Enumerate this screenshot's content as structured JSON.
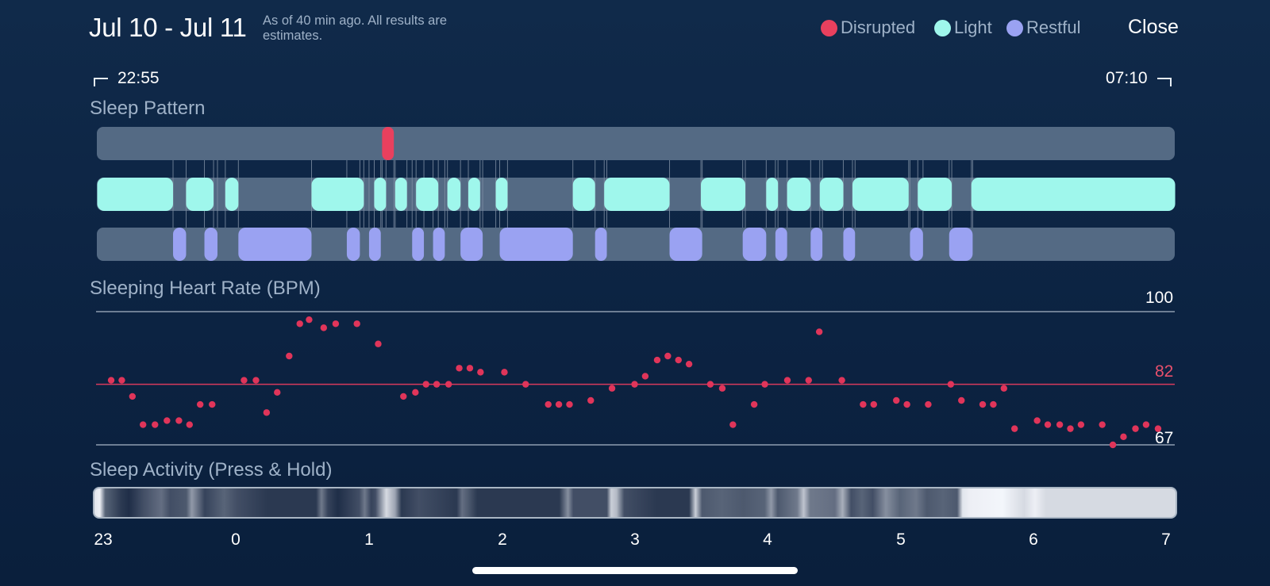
{
  "header": {
    "date_range": "Jul 10 - Jul 11",
    "note": "As of 40 min ago. All results are estimates.",
    "close_label": "Close"
  },
  "legend": [
    {
      "label": "Disrupted",
      "color": "#e8405e"
    },
    {
      "label": "Light",
      "color": "#9ff7ec"
    },
    {
      "label": "Restful",
      "color": "#9aa2f2"
    }
  ],
  "times": {
    "start": "22:55",
    "end": "07:10"
  },
  "sleep_pattern": {
    "title": "Sleep Pattern",
    "track_color": "#546a84",
    "start_hour": 22.9167,
    "end_hour": 31.1667,
    "rows": {
      "disrupted": [
        [
          1.1,
          1.19
        ]
      ],
      "light": [
        [
          22.92,
          23.5
        ],
        [
          23.6,
          23.81
        ],
        [
          23.9,
          24.0
        ],
        [
          24.56,
          24.96
        ],
        [
          25.04,
          25.13
        ],
        [
          25.2,
          25.29
        ],
        [
          25.36,
          25.53
        ],
        [
          25.6,
          25.7
        ],
        [
          25.76,
          25.85
        ],
        [
          25.97,
          26.06
        ],
        [
          26.56,
          26.73
        ],
        [
          26.8,
          27.3
        ],
        [
          27.54,
          27.88
        ],
        [
          28.04,
          28.13
        ],
        [
          28.2,
          28.38
        ],
        [
          28.45,
          28.63
        ],
        [
          28.7,
          29.13
        ],
        [
          29.2,
          29.46
        ],
        [
          29.61,
          31.17
        ]
      ],
      "restful": [
        [
          23.5,
          23.6
        ],
        [
          23.74,
          23.84
        ],
        [
          24.0,
          24.56
        ],
        [
          24.83,
          24.93
        ],
        [
          25.0,
          25.09
        ],
        [
          25.33,
          25.42
        ],
        [
          25.49,
          25.58
        ],
        [
          25.7,
          25.87
        ],
        [
          26.0,
          26.56
        ],
        [
          26.73,
          26.82
        ],
        [
          27.3,
          27.55
        ],
        [
          27.86,
          28.04
        ],
        [
          28.11,
          28.2
        ],
        [
          28.38,
          28.47
        ],
        [
          28.63,
          28.72
        ],
        [
          29.14,
          29.24
        ],
        [
          29.44,
          29.62
        ]
      ]
    }
  },
  "heart_rate": {
    "title": "Sleeping Heart Rate (BPM)",
    "max_label": "100",
    "avg_label": "82",
    "min_label": "67"
  },
  "chart_data": {
    "type": "scatter",
    "title": "Sleeping Heart Rate (BPM)",
    "x_unit": "hour of night (23 = 23:00, 0..7 = next day)",
    "ylim": [
      67,
      100
    ],
    "reference_lines": {
      "max": 100,
      "average": 82,
      "min": 67
    },
    "points": [
      [
        23.06,
        83
      ],
      [
        23.14,
        83
      ],
      [
        23.22,
        79
      ],
      [
        23.3,
        72
      ],
      [
        23.39,
        72
      ],
      [
        23.48,
        73
      ],
      [
        23.57,
        73
      ],
      [
        23.65,
        72
      ],
      [
        23.73,
        77
      ],
      [
        23.82,
        77
      ],
      [
        0.06,
        83
      ],
      [
        0.15,
        83
      ],
      [
        0.23,
        75
      ],
      [
        0.31,
        80
      ],
      [
        0.4,
        89
      ],
      [
        0.48,
        97
      ],
      [
        0.55,
        98
      ],
      [
        0.66,
        96
      ],
      [
        0.75,
        97
      ],
      [
        0.91,
        97
      ],
      [
        1.07,
        92
      ],
      [
        1.26,
        79
      ],
      [
        1.35,
        80
      ],
      [
        1.43,
        82
      ],
      [
        1.51,
        82
      ],
      [
        1.6,
        82
      ],
      [
        1.68,
        86
      ],
      [
        1.76,
        86
      ],
      [
        1.84,
        85
      ],
      [
        2.02,
        85
      ],
      [
        2.18,
        82
      ],
      [
        2.35,
        77
      ],
      [
        2.43,
        77
      ],
      [
        2.51,
        77
      ],
      [
        2.67,
        78
      ],
      [
        2.83,
        81
      ],
      [
        3.0,
        82
      ],
      [
        3.08,
        84
      ],
      [
        3.17,
        88
      ],
      [
        3.25,
        89
      ],
      [
        3.33,
        88
      ],
      [
        3.41,
        87
      ],
      [
        3.57,
        82
      ],
      [
        3.66,
        81
      ],
      [
        3.74,
        72
      ],
      [
        3.9,
        77
      ],
      [
        3.98,
        82
      ],
      [
        4.15,
        83
      ],
      [
        4.31,
        83
      ],
      [
        4.39,
        95
      ],
      [
        4.56,
        83
      ],
      [
        4.72,
        77
      ],
      [
        4.8,
        77
      ],
      [
        4.97,
        78
      ],
      [
        5.05,
        77
      ],
      [
        5.21,
        77
      ],
      [
        5.38,
        82
      ],
      [
        5.46,
        78
      ],
      [
        5.62,
        77
      ],
      [
        5.7,
        77
      ],
      [
        5.78,
        81
      ],
      [
        5.86,
        71
      ],
      [
        6.03,
        73
      ],
      [
        6.11,
        72
      ],
      [
        6.2,
        72
      ],
      [
        6.28,
        71
      ],
      [
        6.36,
        72
      ],
      [
        6.52,
        72
      ],
      [
        6.6,
        67
      ],
      [
        6.68,
        69
      ],
      [
        6.77,
        71
      ],
      [
        6.85,
        72
      ],
      [
        6.94,
        71
      ]
    ]
  },
  "activity": {
    "title": "Sleep Activity (Press & Hold)",
    "hour_labels": [
      "23",
      "0",
      "1",
      "2",
      "3",
      "4",
      "5",
      "6",
      "7"
    ]
  },
  "colors": {
    "disrupted": "#e8405e",
    "light": "#9ff7ec",
    "restful": "#9aa2f2",
    "hr_dot": "#e0355a",
    "hr_avg_line": "#d83a5c",
    "hr_grid_line": "#8e9db0",
    "avg_label": "#e8506c"
  }
}
